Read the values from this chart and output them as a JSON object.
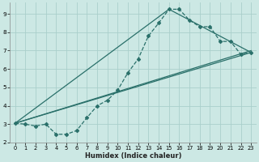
{
  "xlabel": "Humidex (Indice chaleur)",
  "bg_color": "#cce8e4",
  "grid_color": "#aacfcb",
  "line_color": "#2a706a",
  "xlim": [
    -0.5,
    23.5
  ],
  "ylim": [
    2.0,
    9.6
  ],
  "xticks": [
    0,
    1,
    2,
    3,
    4,
    5,
    6,
    7,
    8,
    9,
    10,
    11,
    12,
    13,
    14,
    15,
    16,
    17,
    18,
    19,
    20,
    21,
    22,
    23
  ],
  "yticks": [
    2,
    3,
    4,
    5,
    6,
    7,
    8,
    9
  ],
  "line1_x": [
    0,
    1,
    2,
    3,
    4,
    5,
    6,
    7,
    8,
    9,
    10,
    11,
    12,
    13,
    14,
    15,
    16,
    17,
    18,
    19,
    20,
    21,
    22,
    23
  ],
  "line1_y": [
    3.05,
    3.0,
    2.9,
    3.0,
    2.45,
    2.45,
    2.65,
    3.35,
    4.0,
    4.3,
    4.85,
    5.8,
    6.55,
    7.8,
    8.5,
    9.25,
    9.25,
    8.65,
    8.3,
    8.3,
    7.5,
    7.5,
    6.8,
    6.9
  ],
  "line2_x": [
    0,
    23
  ],
  "line2_y": [
    3.05,
    6.9
  ],
  "line3_x": [
    0,
    15,
    23
  ],
  "line3_y": [
    3.05,
    9.25,
    6.9
  ],
  "line4_x": [
    0,
    23
  ],
  "line4_y": [
    3.05,
    7.0
  ],
  "spine_color": "#888888"
}
